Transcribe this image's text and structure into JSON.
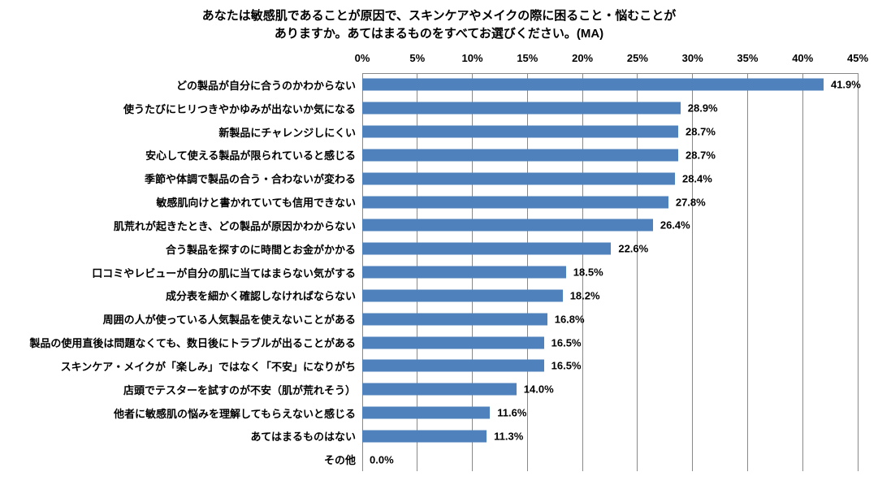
{
  "title": {
    "line1": "あなたは敏感肌であることが原因で、スキンケアやメイクの際に困ること・悩むことが",
    "line2": "ありますか。あてはまるものをすべてお選びください。(MA)"
  },
  "chart_data": {
    "type": "bar",
    "orientation": "horizontal",
    "title": "あなたは敏感肌であることが原因で、スキンケアやメイクの際に困ること・悩むことがありますか。あてはまるものをすべてお選びください。(MA)",
    "categories": [
      "どの製品が自分に合うのかわからない",
      "使うたびにヒリつきやかゆみが出ないか気になる",
      "新製品にチャレンジしにくい",
      "安心して使える製品が限られていると感じる",
      "季節や体調で製品の合う・合わないが変わる",
      "敏感肌向けと書かれていても信用できない",
      "肌荒れが起きたとき、どの製品が原因かわからない",
      "合う製品を探すのに時間とお金がかかる",
      "口コミやレビューが自分の肌に当てはまらない気がする",
      "成分表を細かく確認しなければならない",
      "周囲の人が使っている人気製品を使えないことがある",
      "製品の使用直後は問題なくても、数日後にトラブルが出ることがある",
      "スキンケア・メイクが「楽しみ」ではなく「不安」になりがち",
      "店頭でテスターを試すのが不安（肌が荒れそう）",
      "他者に敏感肌の悩みを理解してもらえないと感じる",
      "あてはまるものはない",
      "その他"
    ],
    "values": [
      41.9,
      28.9,
      28.7,
      28.7,
      28.4,
      27.8,
      26.4,
      22.6,
      18.5,
      18.2,
      16.8,
      16.5,
      16.5,
      14.0,
      11.6,
      11.3,
      0.0
    ],
    "value_labels": [
      "41.9%",
      "28.9%",
      "28.7%",
      "28.7%",
      "28.4%",
      "27.8%",
      "26.4%",
      "22.6%",
      "18.5%",
      "18.2%",
      "16.8%",
      "16.5%",
      "16.5%",
      "14.0%",
      "11.6%",
      "11.3%",
      "0.0%"
    ],
    "x_ticks": [
      "0%",
      "5%",
      "10%",
      "15%",
      "20%",
      "25%",
      "30%",
      "35%",
      "40%",
      "45%"
    ],
    "xlim": [
      0,
      45
    ],
    "xlabel": "",
    "ylabel": "",
    "grid": "vertical",
    "legend": "none",
    "bar_color": "#4F81BD",
    "gridline_color": "#898989",
    "text_color": "#000000",
    "background_color": "#FFFFFF"
  }
}
